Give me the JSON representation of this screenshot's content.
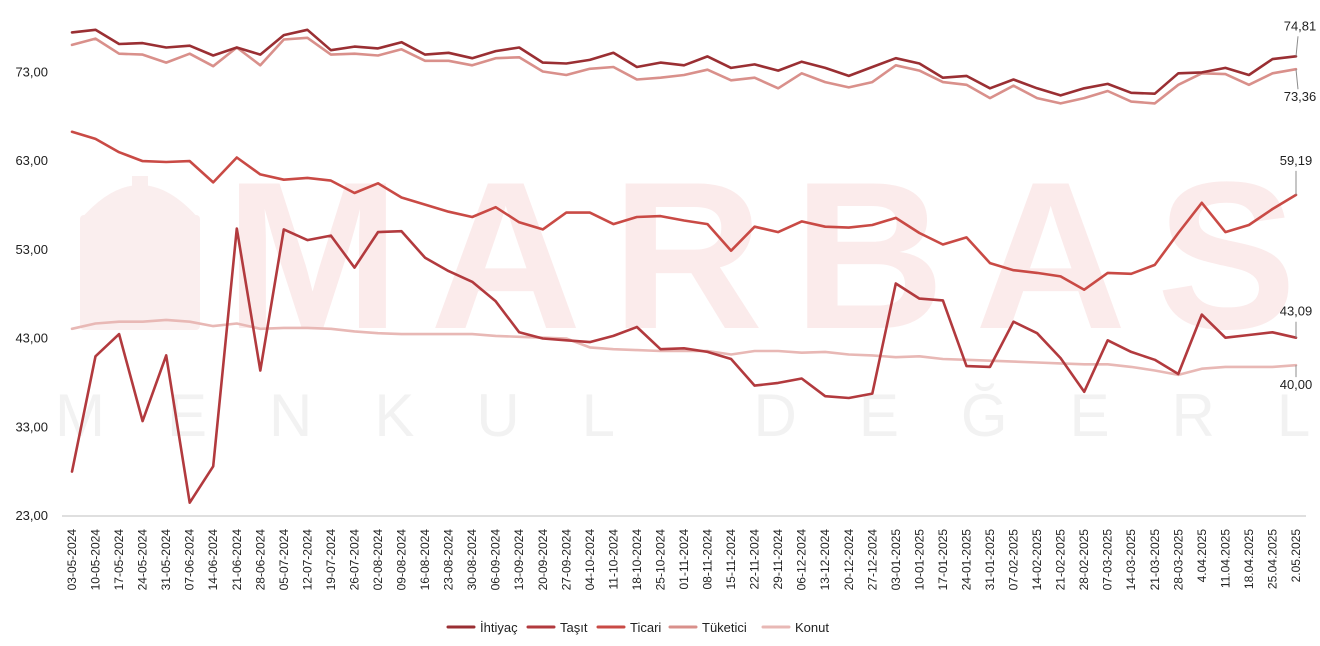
{
  "watermark": {
    "main": "MARBAS",
    "sub": "MENKUL DEĞERLER"
  },
  "chart_data": {
    "type": "line",
    "title": "",
    "xlabel": "",
    "ylabel": "",
    "ylim": [
      23,
      78
    ],
    "yticks": [
      "23,00",
      "33,00",
      "43,00",
      "53,00",
      "63,00",
      "73,00"
    ],
    "ytick_values": [
      23,
      33,
      43,
      53,
      63,
      73
    ],
    "grid": false,
    "legend_position": "bottom",
    "x": [
      "03-05-2024",
      "10-05-2024",
      "17-05-2024",
      "24-05-2024",
      "31-05-2024",
      "07-06-2024",
      "14-06-2024",
      "21-06-2024",
      "28-06-2024",
      "05-07-2024",
      "12-07-2024",
      "19-07-2024",
      "26-07-2024",
      "02-08-2024",
      "09-08-2024",
      "16-08-2024",
      "23-08-2024",
      "30-08-2024",
      "06-09-2024",
      "13-09-2024",
      "20-09-2024",
      "27-09-2024",
      "04-10-2024",
      "11-10-2024",
      "18-10-2024",
      "25-10-2024",
      "01-11-2024",
      "08-11-2024",
      "15-11-2024",
      "22-11-2024",
      "29-11-2024",
      "06-12-2024",
      "13-12-2024",
      "20-12-2024",
      "27-12-2024",
      "03-01-2025",
      "10-01-2025",
      "17-01-2025",
      "24-01-2025",
      "31-01-2025",
      "07-02-2025",
      "14-02-2025",
      "21-02-2025",
      "28-02-2025",
      "07-03-2025",
      "14-03-2025",
      "21-03-2025",
      "28-03-2025",
      "4.04.2025",
      "11.04.2025",
      "18.04.2025",
      "25.04.2025",
      "2.05.2025"
    ],
    "series": [
      {
        "name": "İhtiyaç",
        "color": "#9a2f33",
        "end_label": "74,81",
        "values": [
          77.5,
          77.8,
          76.2,
          76.3,
          75.8,
          76.0,
          74.9,
          75.8,
          75.0,
          77.2,
          77.8,
          75.5,
          75.9,
          75.7,
          76.4,
          75.0,
          75.2,
          74.6,
          75.4,
          75.8,
          74.1,
          74.0,
          74.4,
          75.2,
          73.6,
          74.1,
          73.8,
          74.8,
          73.5,
          73.9,
          73.2,
          74.2,
          73.5,
          72.6,
          73.6,
          74.6,
          74.0,
          72.4,
          72.6,
          71.2,
          72.2,
          71.2,
          70.4,
          71.2,
          71.7,
          70.7,
          70.6,
          72.9,
          73.0,
          73.5,
          72.7,
          74.5,
          74.81
        ]
      },
      {
        "name": "Taşıt",
        "color": "#b23a3e",
        "end_label": "43,09",
        "values": [
          28.0,
          41.0,
          43.5,
          33.7,
          41.1,
          24.5,
          28.6,
          55.4,
          39.4,
          55.3,
          54.1,
          54.6,
          51.0,
          55.0,
          55.1,
          52.1,
          50.6,
          49.4,
          47.2,
          43.7,
          43.0,
          42.8,
          42.6,
          43.3,
          44.3,
          41.8,
          41.9,
          41.5,
          40.7,
          37.7,
          38.0,
          38.5,
          36.5,
          36.3,
          36.8,
          49.2,
          47.5,
          47.3,
          39.9,
          39.8,
          44.9,
          43.6,
          40.8,
          37.0,
          42.8,
          41.5,
          40.6,
          39.0,
          45.7,
          43.1,
          43.4,
          43.7,
          43.09
        ]
      },
      {
        "name": "Ticari",
        "color": "#c94a45",
        "end_label": "59,19",
        "values": [
          66.3,
          65.5,
          64.0,
          63.0,
          62.9,
          63.0,
          60.6,
          63.4,
          61.5,
          60.9,
          61.1,
          60.8,
          59.4,
          60.5,
          58.9,
          58.1,
          57.3,
          56.7,
          57.8,
          56.1,
          55.3,
          57.2,
          57.2,
          55.9,
          56.7,
          56.8,
          56.3,
          55.9,
          52.9,
          55.6,
          55.0,
          56.2,
          55.6,
          55.5,
          55.8,
          56.6,
          54.9,
          53.6,
          54.4,
          51.5,
          50.7,
          50.4,
          50.0,
          48.5,
          50.4,
          50.3,
          51.3,
          54.9,
          58.3,
          55.0,
          55.8,
          57.6,
          59.19
        ]
      },
      {
        "name": "Tüketici",
        "color": "#d9908b",
        "end_label": "73,36",
        "values": [
          76.1,
          76.8,
          75.1,
          75.0,
          74.1,
          75.1,
          73.7,
          75.8,
          73.8,
          76.7,
          76.9,
          75.0,
          75.1,
          74.9,
          75.6,
          74.3,
          74.3,
          73.8,
          74.6,
          74.7,
          73.1,
          72.7,
          73.4,
          73.6,
          72.2,
          72.4,
          72.7,
          73.3,
          72.1,
          72.4,
          71.2,
          72.9,
          71.9,
          71.3,
          71.9,
          73.8,
          73.2,
          71.9,
          71.6,
          70.1,
          71.5,
          70.1,
          69.5,
          70.1,
          70.9,
          69.7,
          69.5,
          71.6,
          72.9,
          72.8,
          71.6,
          72.9,
          73.36
        ]
      },
      {
        "name": "Konut",
        "color": "#e8b8b5",
        "end_label": "40,00",
        "values": [
          44.1,
          44.7,
          44.9,
          44.9,
          45.1,
          44.9,
          44.4,
          44.7,
          44.1,
          44.2,
          44.2,
          44.1,
          43.8,
          43.6,
          43.5,
          43.5,
          43.5,
          43.5,
          43.3,
          43.2,
          43.1,
          43.0,
          42.0,
          41.8,
          41.7,
          41.6,
          41.6,
          41.6,
          41.2,
          41.6,
          41.6,
          41.4,
          41.5,
          41.2,
          41.1,
          40.9,
          41.0,
          40.7,
          40.6,
          40.5,
          40.4,
          40.3,
          40.2,
          40.1,
          40.1,
          39.8,
          39.4,
          38.9,
          39.6,
          39.8,
          39.8,
          39.8,
          40.0
        ]
      }
    ]
  }
}
